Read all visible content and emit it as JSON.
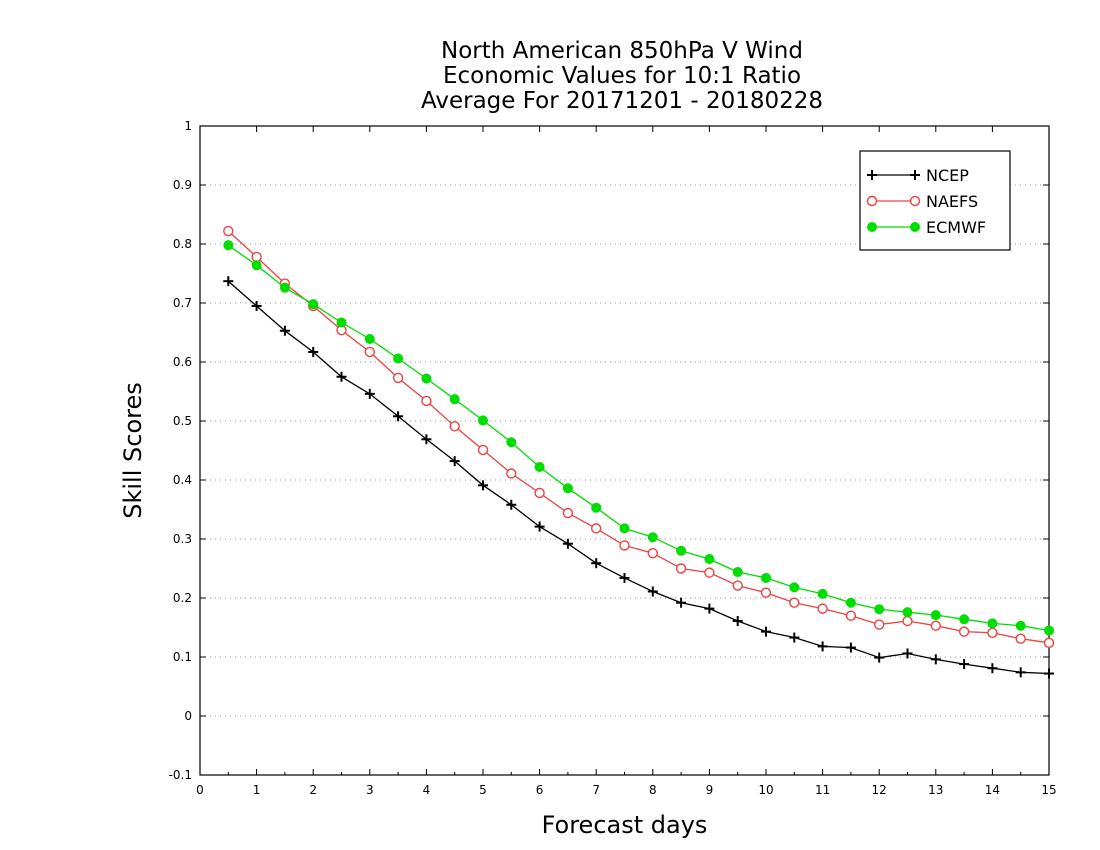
{
  "chart_data": {
    "type": "line",
    "title_lines": [
      "North American 850hPa V Wind",
      "Economic Values for 10:1 Ratio",
      "Average For 20171201 - 20180228"
    ],
    "xlabel": "Forecast days",
    "ylabel": "Skill Scores",
    "xlim": [
      0,
      15
    ],
    "ylim": [
      -0.1,
      1
    ],
    "xticks": [
      0,
      1,
      2,
      3,
      4,
      5,
      6,
      7,
      8,
      9,
      10,
      11,
      12,
      13,
      14,
      15
    ],
    "xtick_labels": [
      "0",
      "1",
      "2",
      "3",
      "4",
      "5",
      "6",
      "7",
      "8",
      "9",
      "10",
      "11",
      "12",
      "13",
      "14",
      "15"
    ],
    "yticks": [
      -0.1,
      0,
      0.1,
      0.2,
      0.3,
      0.4,
      0.5,
      0.6,
      0.7,
      0.8,
      0.9,
      1
    ],
    "ytick_labels": [
      "-0.1",
      "0",
      "0.1",
      "0.2",
      "0.3",
      "0.4",
      "0.5",
      "0.6",
      "0.7",
      "0.8",
      "0.9",
      "1"
    ],
    "grid": "horizontal-dotted",
    "legend_position": "top-right",
    "x": [
      0.5,
      1,
      1.5,
      2,
      2.5,
      3,
      3.5,
      4,
      4.5,
      5,
      5.5,
      6,
      6.5,
      7,
      7.5,
      8,
      8.5,
      9,
      9.5,
      10,
      10.5,
      11,
      11.5,
      12,
      12.5,
      13,
      13.5,
      14,
      14.5,
      15
    ],
    "series": [
      {
        "name": "NCEP",
        "color": "#000000",
        "marker": "plus",
        "values": [
          0.737,
          0.695,
          0.653,
          0.617,
          0.575,
          0.546,
          0.508,
          0.469,
          0.432,
          0.391,
          0.358,
          0.321,
          0.292,
          0.259,
          0.234,
          0.211,
          0.192,
          0.182,
          0.161,
          0.143,
          0.133,
          0.118,
          0.116,
          0.099,
          0.106,
          0.096,
          0.088,
          0.081,
          0.074,
          0.072
        ]
      },
      {
        "name": "NAEFS",
        "color": "#f04040",
        "marker": "open-circle",
        "values": [
          0.822,
          0.778,
          0.733,
          0.695,
          0.654,
          0.617,
          0.573,
          0.534,
          0.491,
          0.451,
          0.411,
          0.378,
          0.344,
          0.318,
          0.289,
          0.276,
          0.25,
          0.243,
          0.221,
          0.209,
          0.192,
          0.182,
          0.17,
          0.155,
          0.161,
          0.153,
          0.143,
          0.141,
          0.131,
          0.124
        ]
      },
      {
        "name": "ECMWF",
        "color": "#00dd00",
        "marker": "filled-circle",
        "values": [
          0.798,
          0.764,
          0.726,
          0.698,
          0.667,
          0.639,
          0.606,
          0.572,
          0.537,
          0.501,
          0.464,
          0.422,
          0.386,
          0.353,
          0.318,
          0.303,
          0.28,
          0.266,
          0.244,
          0.234,
          0.218,
          0.207,
          0.192,
          0.181,
          0.176,
          0.171,
          0.164,
          0.157,
          0.153,
          0.145
        ]
      }
    ]
  }
}
